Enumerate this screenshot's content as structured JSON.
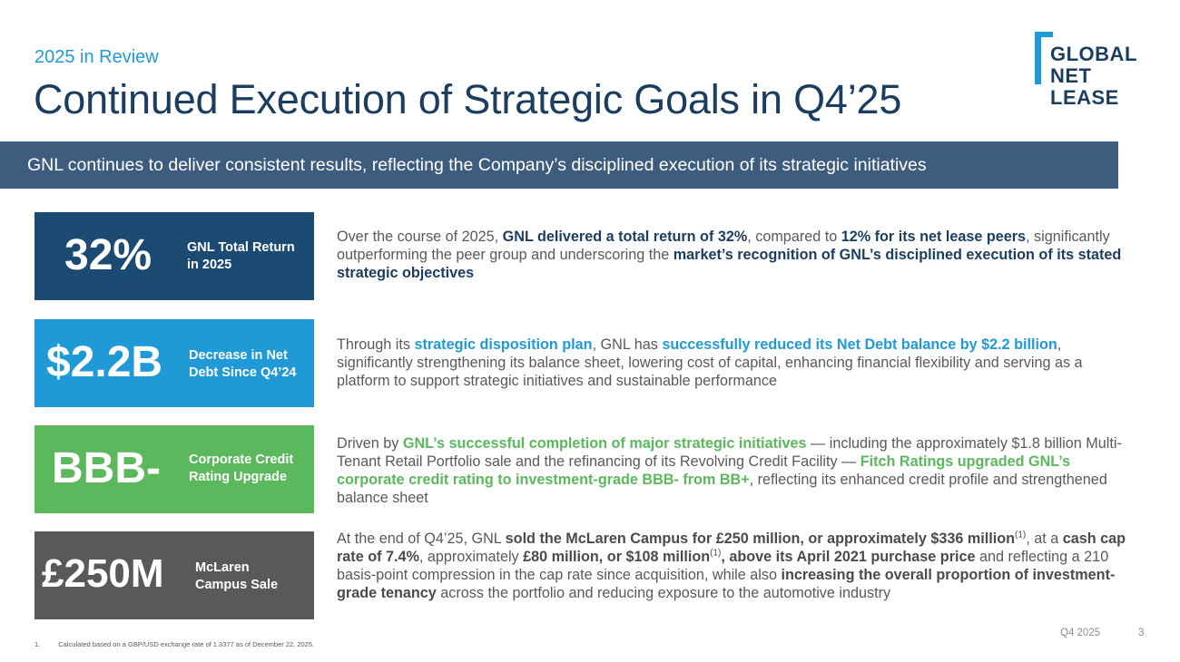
{
  "header": {
    "kicker": "2025 in Review",
    "title": "Continued Execution of Strategic Goals in Q4’25"
  },
  "logo": {
    "line1": "GLOBAL",
    "line2": "NET",
    "line3": "LEASE"
  },
  "banner": {
    "text": "GNL continues to deliver consistent results, reflecting the Company’s disciplined execution of its strategic initiatives"
  },
  "tiles": [
    {
      "value": "32%",
      "label_1": "GNL Total Return",
      "label_2": "in 2025",
      "color": "#1b4a72"
    },
    {
      "value": "$2.2B",
      "label_1": "Decrease in Net",
      "label_2": "Debt Since Q4’24",
      "color": "#1f9ad6"
    },
    {
      "value": "BBB-",
      "label_1": "Corporate Credit",
      "label_2": "Rating Upgrade",
      "color": "#5bb85c"
    },
    {
      "value": "£250M",
      "label_1": "McLaren",
      "label_2": "Campus Sale",
      "color": "#58595b"
    }
  ],
  "paragraphs": {
    "p1": {
      "a": "Over the course of 2025, ",
      "b": "GNL delivered a total return of 32%",
      "c": ", compared to ",
      "d": "12% for its net lease peers",
      "e": ", significantly outperforming the peer group and underscoring the ",
      "f": "market’s recognition of GNL’s disciplined execution of its stated strategic objectives"
    },
    "p2": {
      "a": "Through its ",
      "b": "strategic disposition plan",
      "c": ", GNL has ",
      "d": "successfully reduced its Net Debt balance by $2.2 billion",
      "e": ", significantly strengthening its balance sheet, lowering cost of capital, enhancing financial flexibility and serving as a platform to support strategic initiatives and sustainable performance"
    },
    "p3": {
      "a": "Driven by ",
      "b": "GNL’s successful completion of major strategic initiatives",
      "c": " — including the approximately $1.8 billion Multi-Tenant Retail Portfolio sale and the refinancing of its Revolving Credit Facility — ",
      "d": "Fitch Ratings upgraded GNL’s corporate credit rating to investment-grade BBB- from BB+",
      "e": ", reflecting its enhanced credit profile and strengthened balance sheet"
    },
    "p4": {
      "a": "At the end of Q4’25, GNL ",
      "b": "sold the McLaren Campus for £250 million, or approximately $336 million",
      "sup1": "(1)",
      "c": ", at a ",
      "d": "cash cap rate of 7.4%",
      "e": ", approximately ",
      "f": "£80 million, or $108 million",
      "sup2": "(1)",
      "g": ", above its April 2021 purchase price",
      "h": " and reflecting a 210 basis-point compression in the cap rate since acquisition, while also ",
      "i": "increasing the overall proportion of investment-grade tenancy",
      "j": " across the portfolio and reducing exposure to the automotive industry"
    }
  },
  "footer": {
    "note_number": "1.",
    "note_text": "Calculated based on a GBP/USD exchange rate of 1.3377 as of December 22, 2025.",
    "quarter": "Q4 2025",
    "page": "3"
  }
}
